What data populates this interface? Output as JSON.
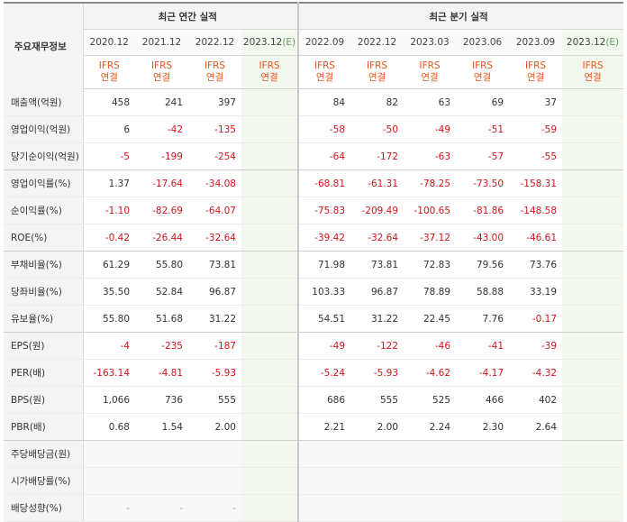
{
  "header": {
    "metric_col": "주요재무정보",
    "annual_group": "최근 연간 실적",
    "quarterly_group": "최근 분기 실적",
    "periods": [
      "2020.12",
      "2021.12",
      "2022.12",
      "2023.12(E)",
      "2022.09",
      "2022.12",
      "2023.03",
      "2023.06",
      "2023.09",
      "2023.12(E)"
    ],
    "ifrs_top": "IFRS",
    "ifrs_bottom": "연결"
  },
  "rows": [
    {
      "label": "매출액(억원)",
      "values": [
        "458",
        "241",
        "397",
        "",
        "84",
        "82",
        "63",
        "69",
        "37",
        ""
      ]
    },
    {
      "label": "영업이익(억원)",
      "values": [
        "6",
        "-42",
        "-135",
        "",
        "-58",
        "-50",
        "-49",
        "-51",
        "-59",
        ""
      ]
    },
    {
      "label": "당기순이익(억원)",
      "values": [
        "-5",
        "-199",
        "-254",
        "",
        "-64",
        "-172",
        "-63",
        "-57",
        "-55",
        ""
      ]
    },
    {
      "label": "영업이익률(%)",
      "values": [
        "1.37",
        "-17.64",
        "-34.08",
        "",
        "-68.81",
        "-61.31",
        "-78.25",
        "-73.50",
        "-158.31",
        ""
      ]
    },
    {
      "label": "순이익률(%)",
      "values": [
        "-1.10",
        "-82.69",
        "-64.07",
        "",
        "-75.83",
        "-209.49",
        "-100.65",
        "-81.86",
        "-148.58",
        ""
      ]
    },
    {
      "label": "ROE(%)",
      "values": [
        "-0.42",
        "-26.44",
        "-32.64",
        "",
        "-39.42",
        "-32.64",
        "-37.12",
        "-43.00",
        "-46.61",
        ""
      ]
    },
    {
      "label": "부채비율(%)",
      "values": [
        "61.29",
        "55.80",
        "73.81",
        "",
        "71.98",
        "73.81",
        "72.83",
        "79.56",
        "73.76",
        ""
      ]
    },
    {
      "label": "당좌비율(%)",
      "values": [
        "35.50",
        "52.84",
        "96.87",
        "",
        "103.33",
        "96.87",
        "78.89",
        "58.88",
        "33.19",
        ""
      ]
    },
    {
      "label": "유보율(%)",
      "values": [
        "55.80",
        "51.68",
        "31.22",
        "",
        "54.51",
        "31.22",
        "22.45",
        "7.76",
        "-0.17",
        ""
      ]
    },
    {
      "label": "EPS(원)",
      "values": [
        "-4",
        "-235",
        "-187",
        "",
        "-49",
        "-122",
        "-46",
        "-41",
        "-39",
        ""
      ]
    },
    {
      "label": "PER(배)",
      "values": [
        "-163.14",
        "-4.81",
        "-5.93",
        "",
        "-5.24",
        "-5.93",
        "-4.62",
        "-4.17",
        "-4.32",
        ""
      ]
    },
    {
      "label": "BPS(원)",
      "values": [
        "1,066",
        "736",
        "555",
        "",
        "686",
        "555",
        "525",
        "466",
        "402",
        ""
      ]
    },
    {
      "label": "PBR(배)",
      "values": [
        "0.68",
        "1.54",
        "2.00",
        "",
        "2.21",
        "2.00",
        "2.24",
        "2.30",
        "2.64",
        ""
      ]
    },
    {
      "label": "주당배당금(원)",
      "values": [
        "",
        "",
        "",
        "",
        "",
        "",
        "",
        "",
        "",
        ""
      ]
    },
    {
      "label": "시가배당률(%)",
      "values": [
        "",
        "",
        "",
        "",
        "",
        "",
        "",
        "",
        "",
        ""
      ]
    },
    {
      "label": "배당성향(%)",
      "values": [
        "-",
        "-",
        "-",
        "",
        "",
        "",
        "",
        "",
        "",
        ""
      ]
    }
  ],
  "colors": {
    "negative": "#d4141a",
    "ifrs": "#e8561a",
    "estimate": "#5aa05a"
  }
}
